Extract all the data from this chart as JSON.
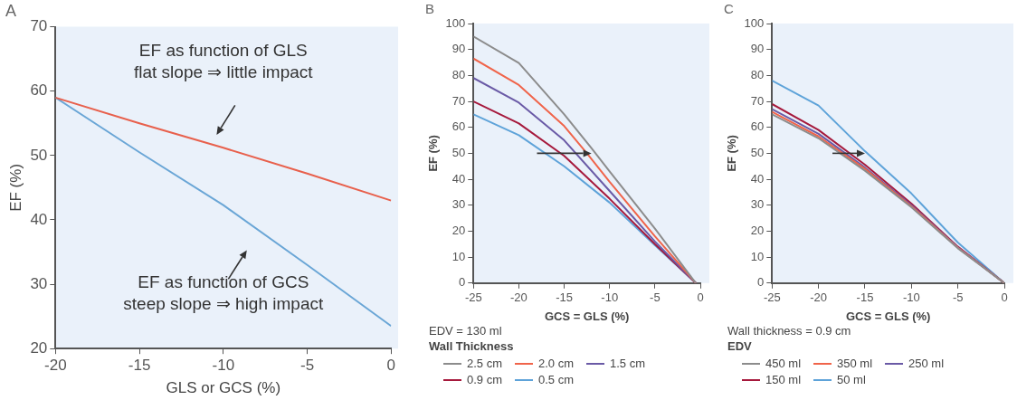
{
  "chart_data": [
    {
      "type": "line",
      "title": "A",
      "xlabel": "GLS or GCS (%)",
      "ylabel": "EF (%)",
      "xlim": [
        -20,
        0
      ],
      "xticks": [
        -20,
        -15,
        -10,
        -5,
        0
      ],
      "ylim": [
        20,
        70
      ],
      "yticks": [
        20,
        30,
        40,
        50,
        60,
        70
      ],
      "marker": "none",
      "line_style": "solid",
      "annotations": [
        "EF as function of GLS\nflat slope ⇒ little impact",
        "EF as function of GCS\nsteep slope ⇒ high impact"
      ],
      "series": [
        {
          "color": "#e8604c",
          "x": [
            -20,
            -15,
            -10,
            -5,
            0
          ],
          "values": [
            59,
            55,
            51.2,
            47.2,
            43
          ]
        },
        {
          "color": "#6aa6d6",
          "x": [
            -20,
            -15,
            -10,
            -5,
            0
          ],
          "values": [
            59,
            50.5,
            42.3,
            33,
            23.5
          ]
        }
      ]
    },
    {
      "type": "line",
      "title": "B",
      "xlabel": "GCS = GLS (%)",
      "ylabel": "EF (%)",
      "xlim": [
        -25,
        0
      ],
      "xticks": [
        -25,
        -20,
        -15,
        -10,
        -5,
        0
      ],
      "ylim": [
        0,
        100
      ],
      "yticks": [
        0,
        10,
        20,
        30,
        40,
        50,
        60,
        70,
        80,
        90,
        100
      ],
      "marker": "none",
      "line_style": "solid",
      "legend": "bottom",
      "legend_title": "Wall Thickness",
      "annotations": [
        "EDV = 130 ml"
      ],
      "series": [
        {
          "name": "2.5 cm",
          "color": "#8c8c8c",
          "x": [
            -25,
            -20,
            -15,
            -12,
            -10,
            -5,
            -0.5
          ],
          "values": [
            95,
            84.8,
            65,
            52,
            43,
            21,
            0
          ]
        },
        {
          "name": "2.0 cm",
          "color": "#f0644a",
          "x": [
            -25,
            -20,
            -15,
            -12.5,
            -10,
            -5,
            -0.5
          ],
          "values": [
            86.5,
            76.3,
            60.5,
            50,
            39,
            18,
            0
          ]
        },
        {
          "name": "1.5 cm",
          "color": "#6a5aa6",
          "x": [
            -25,
            -20,
            -15,
            -10,
            -5,
            -0.5
          ],
          "values": [
            79,
            69.5,
            55,
            35.5,
            16,
            0
          ]
        },
        {
          "name": "0.9 cm",
          "color": "#a6193c",
          "x": [
            -25,
            -20,
            -15,
            -10,
            -5,
            -0.5
          ],
          "values": [
            70,
            61.5,
            49,
            32.5,
            15,
            0
          ]
        },
        {
          "name": "0.5 cm",
          "color": "#5ea3d9",
          "x": [
            -25,
            -20,
            -15,
            -10,
            -5,
            -0.5
          ],
          "values": [
            65,
            57,
            45,
            31,
            14.6,
            0
          ]
        }
      ]
    },
    {
      "type": "line",
      "title": "C",
      "xlabel": "GCS = GLS (%)",
      "ylabel": "EF (%)",
      "xlim": [
        -25,
        0
      ],
      "xticks": [
        -25,
        -20,
        -15,
        -10,
        -5,
        0
      ],
      "ylim": [
        0,
        100
      ],
      "yticks": [
        0,
        10,
        20,
        30,
        40,
        50,
        60,
        70,
        80,
        90,
        100
      ],
      "marker": "none",
      "line_style": "solid",
      "legend": "bottom",
      "legend_title": "EDV",
      "annotations": [
        "Wall thickness = 0.9 cm"
      ],
      "series": [
        {
          "name": "450 ml",
          "color": "#8c8c8c",
          "x": [
            -25,
            -20,
            -15,
            -10,
            -5,
            0
          ],
          "values": [
            65,
            55.8,
            43.3,
            29.2,
            13.4,
            0
          ]
        },
        {
          "name": "350 ml",
          "color": "#f0644a",
          "x": [
            -25,
            -20,
            -15,
            -10,
            -5,
            0
          ],
          "values": [
            66,
            56.5,
            44,
            29.6,
            13.6,
            0
          ]
        },
        {
          "name": "250 ml",
          "color": "#6a5aa6",
          "x": [
            -25,
            -20,
            -15,
            -10,
            -5,
            0
          ],
          "values": [
            67,
            57.5,
            44.5,
            30,
            13.8,
            0
          ]
        },
        {
          "name": "150 ml",
          "color": "#a6193c",
          "x": [
            -25,
            -20,
            -15,
            -10,
            -5,
            0
          ],
          "values": [
            69,
            59,
            45.6,
            30.6,
            14,
            0
          ]
        },
        {
          "name": "50 ml",
          "color": "#5ea3d9",
          "x": [
            -25,
            -20,
            -15,
            -10,
            -5,
            0
          ],
          "values": [
            78,
            68.4,
            50.8,
            34.5,
            15.6,
            0
          ]
        }
      ]
    }
  ]
}
